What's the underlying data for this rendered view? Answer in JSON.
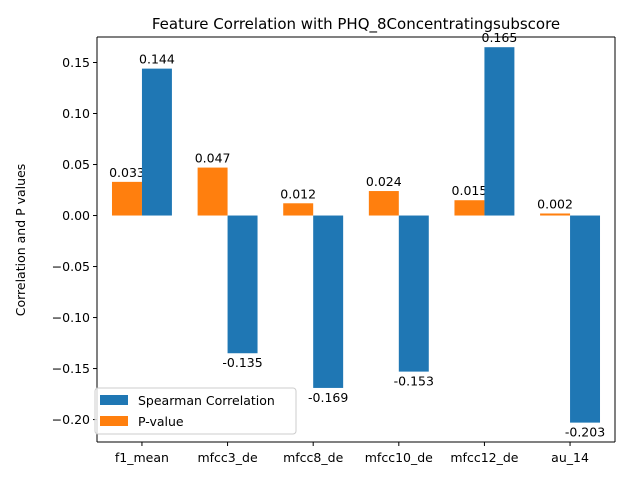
{
  "chart_data": {
    "type": "bar",
    "title": "Feature Correlation with PHQ_8Concentratingsubscore",
    "xlabel": "",
    "ylabel": "Correlation and P values",
    "categories": [
      "f1_mean",
      "mfcc3_de",
      "mfcc8_de",
      "mfcc10_de",
      "mfcc12_de",
      "au_14"
    ],
    "series": [
      {
        "name": "Spearman Correlation",
        "color": "#1f77b4",
        "values": [
          0.144,
          -0.135,
          -0.169,
          -0.153,
          0.165,
          -0.203
        ],
        "labels": [
          "0.144",
          "-0.135",
          "-0.169",
          "-0.153",
          "0.165",
          "-0.203"
        ]
      },
      {
        "name": "P-value",
        "color": "#ff7f0e",
        "values": [
          0.033,
          0.047,
          0.012,
          0.024,
          0.015,
          0.002
        ],
        "labels": [
          "0.033",
          "0.047",
          "0.012",
          "0.024",
          "0.015",
          "0.002"
        ]
      }
    ],
    "ylim": [
      -0.222,
      0.175
    ],
    "yticks": [
      0.15,
      0.1,
      0.05,
      0.0,
      -0.05,
      -0.1,
      -0.15,
      -0.2
    ],
    "ytick_labels": [
      "0.15",
      "0.10",
      "0.05",
      "0.00",
      "−0.05",
      "−0.10",
      "−0.15",
      "−0.20"
    ],
    "grid": false,
    "legend_position": "lower-left"
  }
}
